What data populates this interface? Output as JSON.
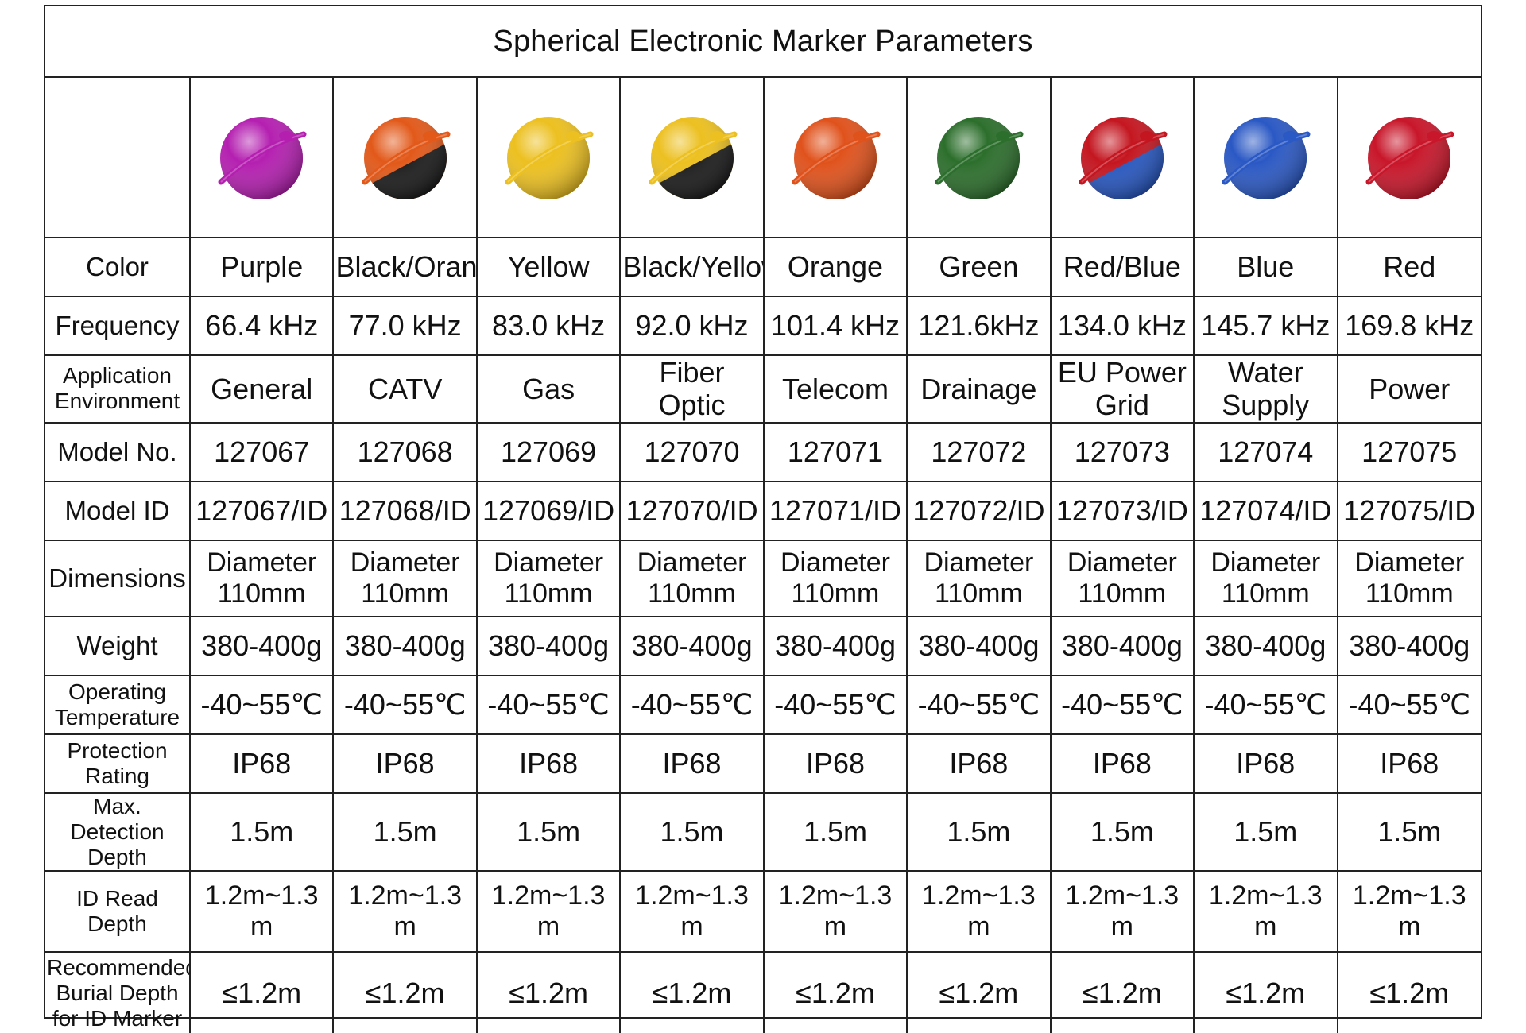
{
  "title": "Spherical Electronic Marker Parameters",
  "markers": [
    {
      "image": "purple-sphere-marker",
      "colors": [
        "#b41fb0",
        "#b41fb0"
      ],
      "color": "Purple",
      "frequency": "66.4 kHz",
      "application": "General",
      "model_no": "127067",
      "model_id": "127067/ID",
      "dimensions": "Diameter 110mm",
      "weight": "380-400g",
      "temperature": "-40~55℃",
      "protection": "IP68",
      "detection_depth": "1.5m",
      "id_read_depth": "1.2m~1.3 m",
      "burial_depth": "≤1.2m"
    },
    {
      "image": "black-orange-sphere-marker",
      "colors": [
        "#e2591a",
        "#1a1a1a"
      ],
      "color": "Black/Orange",
      "frequency": "77.0 kHz",
      "application": "CATV",
      "model_no": "127068",
      "model_id": "127068/ID",
      "dimensions": "Diameter 110mm",
      "weight": "380-400g",
      "temperature": "-40~55℃",
      "protection": "IP68",
      "detection_depth": "1.5m",
      "id_read_depth": "1.2m~1.3 m",
      "burial_depth": "≤1.2m"
    },
    {
      "image": "yellow-sphere-marker",
      "colors": [
        "#ecc020",
        "#ecc020"
      ],
      "color": "Yellow",
      "frequency": "83.0 kHz",
      "application": "Gas",
      "model_no": "127069",
      "model_id": "127069/ID",
      "dimensions": "Diameter 110mm",
      "weight": "380-400g",
      "temperature": "-40~55℃",
      "protection": "IP68",
      "detection_depth": "1.5m",
      "id_read_depth": "1.2m~1.3 m",
      "burial_depth": "≤1.2m"
    },
    {
      "image": "black-yellow-sphere-marker",
      "colors": [
        "#ecc020",
        "#1a1a1a"
      ],
      "color": "Black/Yellow",
      "frequency": "92.0 kHz",
      "application": "Fiber Optic",
      "model_no": "127070",
      "model_id": "127070/ID",
      "dimensions": "Diameter 110mm",
      "weight": "380-400g",
      "temperature": "-40~55℃",
      "protection": "IP68",
      "detection_depth": "1.5m",
      "id_read_depth": "1.2m~1.3 m",
      "burial_depth": "≤1.2m"
    },
    {
      "image": "orange-sphere-marker",
      "colors": [
        "#e0521c",
        "#e0521c"
      ],
      "color": "Orange",
      "frequency": "101.4 kHz",
      "application": "Telecom",
      "model_no": "127071",
      "model_id": "127071/ID",
      "dimensions": "Diameter 110mm",
      "weight": "380-400g",
      "temperature": "-40~55℃",
      "protection": "IP68",
      "detection_depth": "1.5m",
      "id_read_depth": "1.2m~1.3 m",
      "burial_depth": "≤1.2m"
    },
    {
      "image": "green-sphere-marker",
      "colors": [
        "#2c6e2c",
        "#2c6e2c"
      ],
      "color": "Green",
      "frequency": "121.6kHz",
      "application": "Drainage",
      "model_no": "127072",
      "model_id": "127072/ID",
      "dimensions": "Diameter 110mm",
      "weight": "380-400g",
      "temperature": "-40~55℃",
      "protection": "IP68",
      "detection_depth": "1.5m",
      "id_read_depth": "1.2m~1.3 m",
      "burial_depth": "≤1.2m"
    },
    {
      "image": "red-blue-sphere-marker",
      "colors": [
        "#c41620",
        "#2656c0"
      ],
      "color": "Red/Blue",
      "frequency": "134.0 kHz",
      "application": "EU Power Grid",
      "model_no": "127073",
      "model_id": "127073/ID",
      "dimensions": "Diameter 110mm",
      "weight": "380-400g",
      "temperature": "-40~55℃",
      "protection": "IP68",
      "detection_depth": "1.5m",
      "id_read_depth": "1.2m~1.3 m",
      "burial_depth": "≤1.2m"
    },
    {
      "image": "blue-sphere-marker",
      "colors": [
        "#2a58c4",
        "#2a58c4"
      ],
      "color": "Blue",
      "frequency": "145.7 kHz",
      "application": "Water Supply",
      "model_no": "127074",
      "model_id": "127074/ID",
      "dimensions": "Diameter 110mm",
      "weight": "380-400g",
      "temperature": "-40~55℃",
      "protection": "IP68",
      "detection_depth": "1.5m",
      "id_read_depth": "1.2m~1.3 m",
      "burial_depth": "≤1.2m"
    },
    {
      "image": "red-sphere-marker",
      "colors": [
        "#c8162a",
        "#c8162a"
      ],
      "color": "Red",
      "frequency": "169.8 kHz",
      "application": "Power",
      "model_no": "127075",
      "model_id": "127075/ID",
      "dimensions": "Diameter 110mm",
      "weight": "380-400g",
      "temperature": "-40~55℃",
      "protection": "IP68",
      "detection_depth": "1.5m",
      "id_read_depth": "1.2m~1.3 m",
      "burial_depth": "≤1.2m"
    }
  ],
  "rows": [
    {
      "key": "color",
      "label": "Color"
    },
    {
      "key": "frequency",
      "label": "Frequency"
    },
    {
      "key": "application",
      "label": "Application Environment"
    },
    {
      "key": "model_no",
      "label": "Model No."
    },
    {
      "key": "model_id",
      "label": "Model ID"
    },
    {
      "key": "dimensions",
      "label": "Dimensions"
    },
    {
      "key": "weight",
      "label": "Weight"
    },
    {
      "key": "temperature",
      "label": "Operating Temperature"
    },
    {
      "key": "protection",
      "label": "Protection Rating"
    },
    {
      "key": "detection_depth",
      "label": "Max. Detection Depth"
    },
    {
      "key": "id_read_depth",
      "label": "ID Read Depth"
    },
    {
      "key": "burial_depth",
      "label": "Recommended Burial Depth for ID Marker"
    }
  ]
}
